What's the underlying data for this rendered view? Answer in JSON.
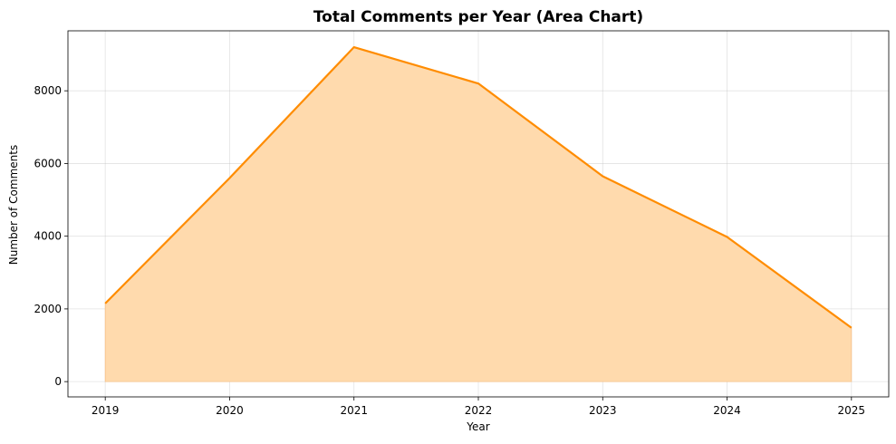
{
  "chart_data": {
    "type": "area",
    "title": "Total Comments per Year (Area Chart)",
    "xlabel": "Year",
    "ylabel": "Number of Comments",
    "x": [
      2019,
      2020,
      2021,
      2022,
      2023,
      2024,
      2025
    ],
    "x_tick_labels": [
      "2019",
      "2020",
      "2021",
      "2022",
      "2023",
      "2024",
      "2025"
    ],
    "y_ticks": [
      0,
      2000,
      4000,
      6000,
      8000
    ],
    "y_tick_labels": [
      "0",
      "2000",
      "4000",
      "6000",
      "8000"
    ],
    "series": [
      {
        "values": [
          2150,
          5600,
          9200,
          8200,
          5650,
          3980,
          1480
        ]
      }
    ],
    "xlim": [
      2018.7,
      2025.3
    ],
    "ylim": [
      -420,
      9650
    ],
    "grid": true,
    "legend": "none",
    "colors": {
      "line": "#ff8c00",
      "fill": "#ffdaad"
    }
  }
}
